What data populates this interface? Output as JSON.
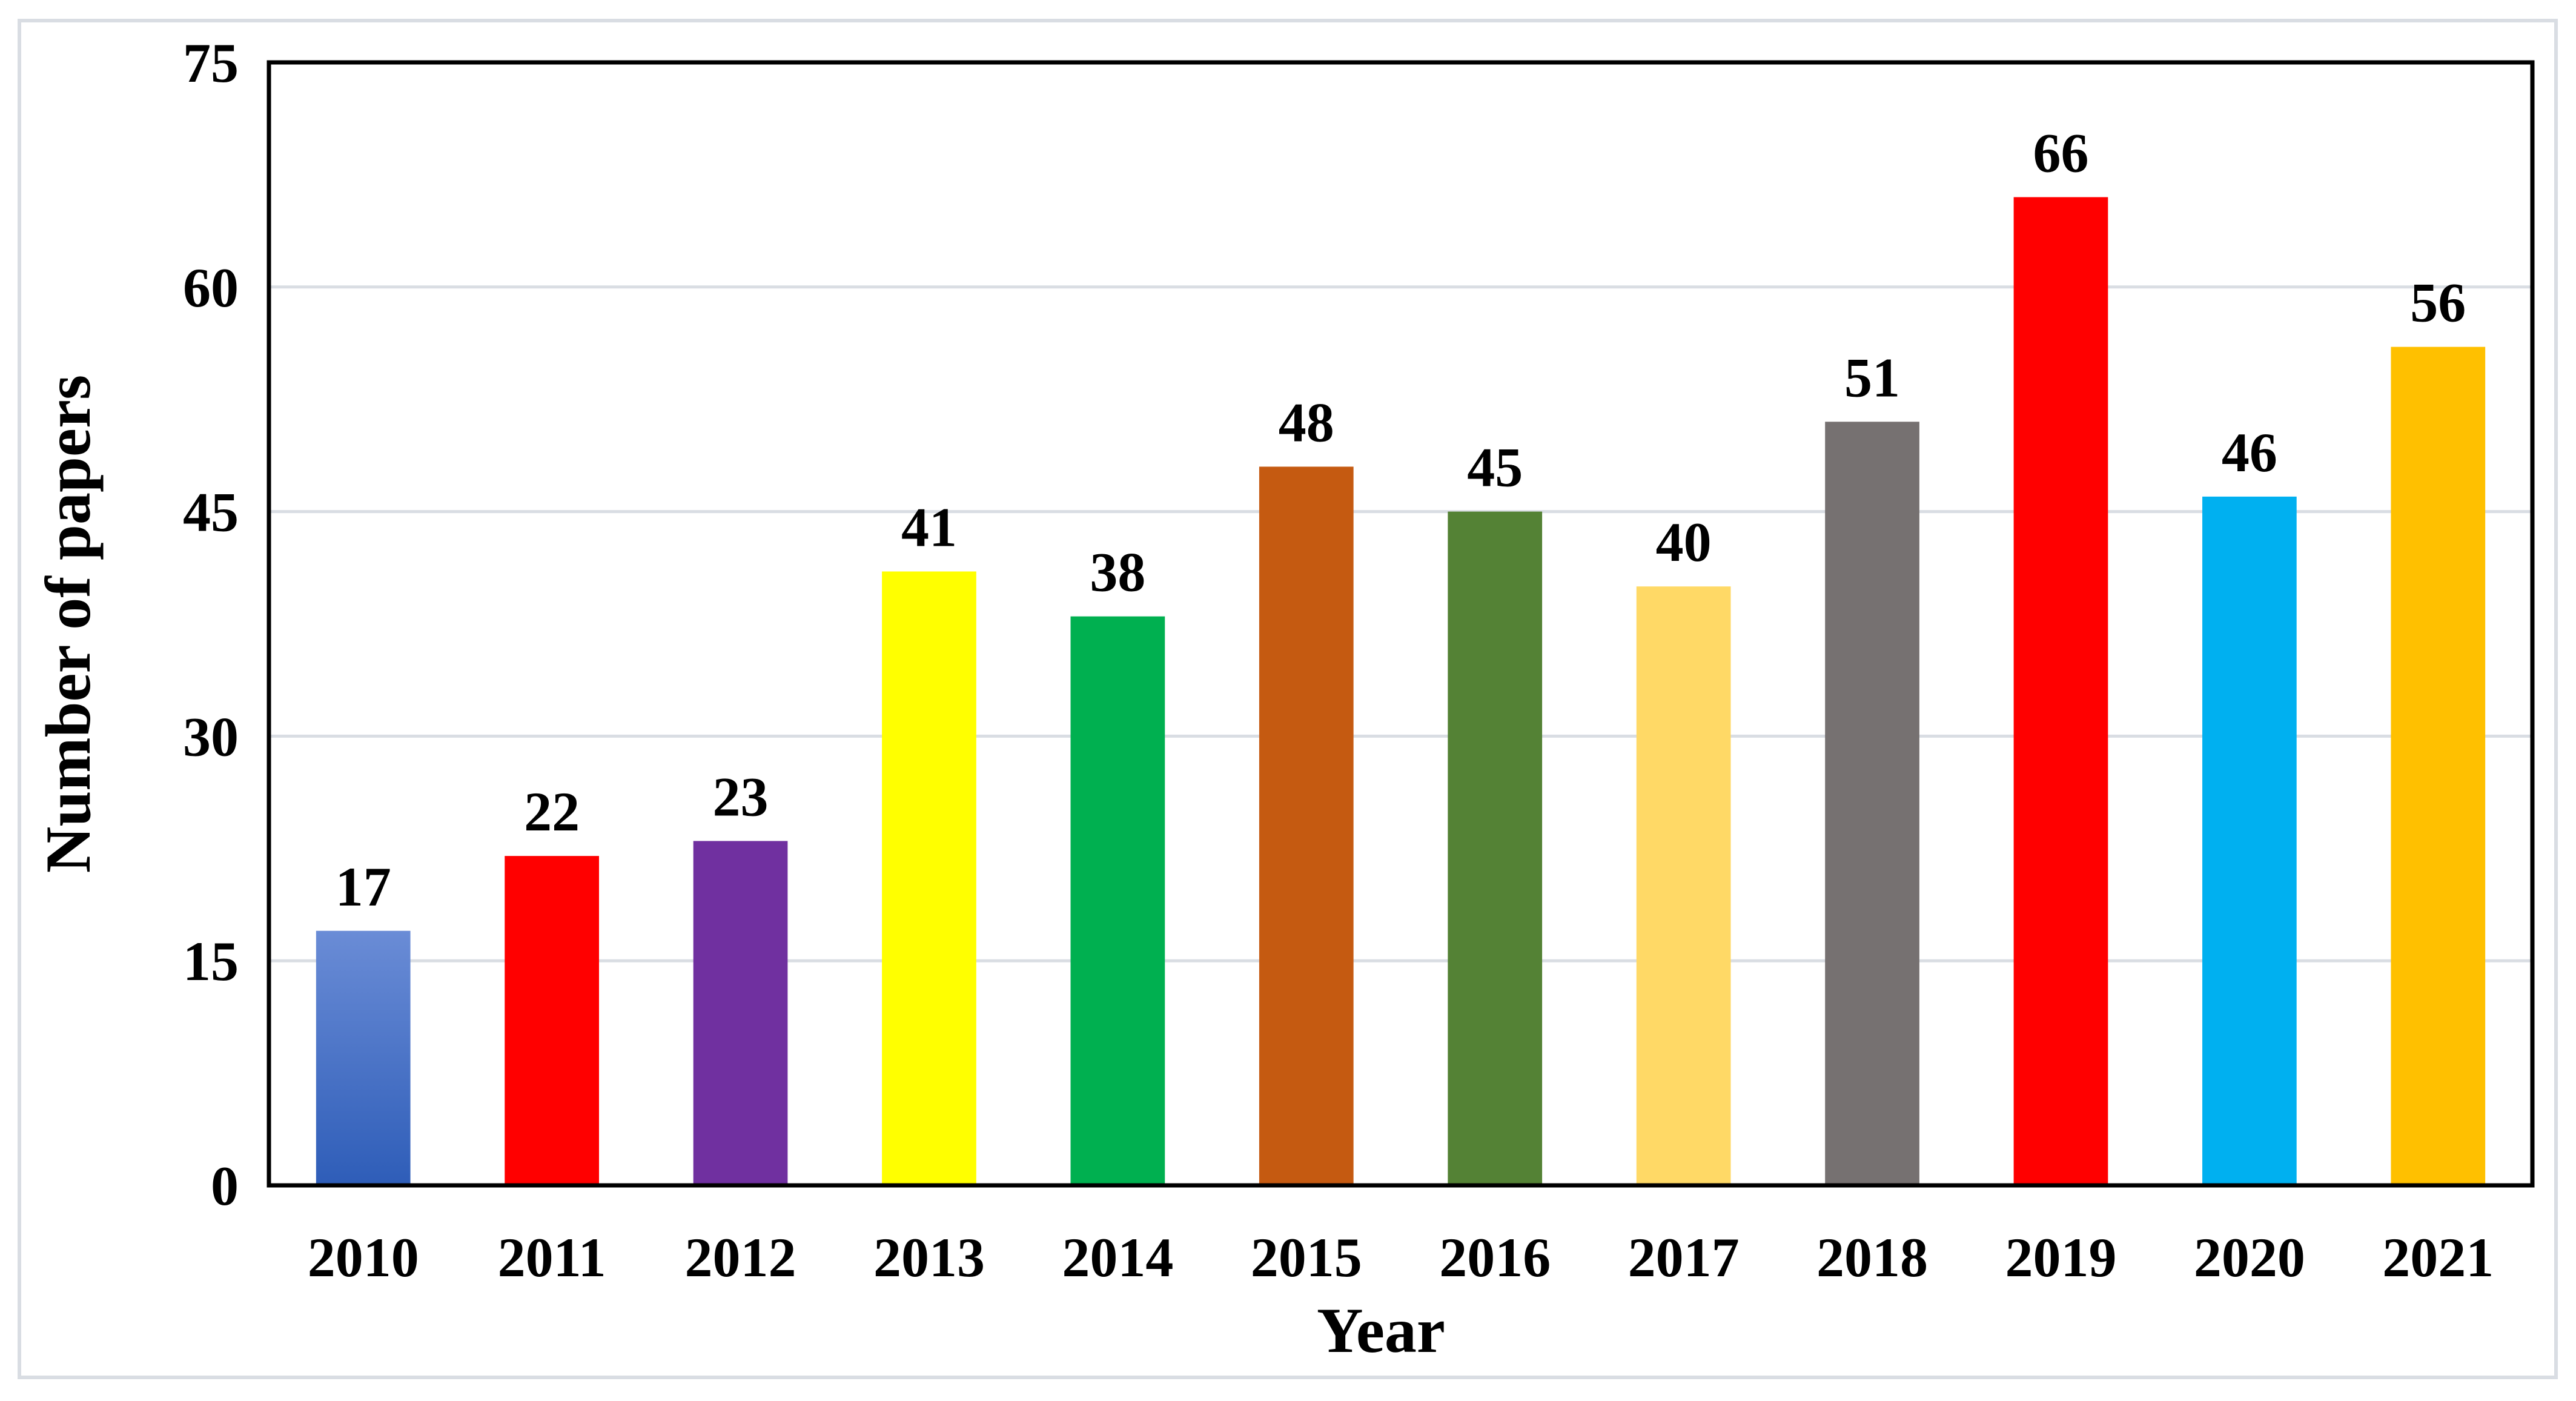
{
  "chart_data": {
    "type": "bar",
    "title": "",
    "xlabel": "Year",
    "ylabel": "Number of papers",
    "categories": [
      "2010",
      "2011",
      "2012",
      "2013",
      "2014",
      "2015",
      "2016",
      "2017",
      "2018",
      "2019",
      "2020",
      "2021"
    ],
    "values": [
      17,
      22,
      23,
      41,
      38,
      48,
      45,
      40,
      51,
      66,
      46,
      56
    ],
    "data_labels": [
      "17",
      "22",
      "23",
      "41",
      "38",
      "48",
      "45",
      "40",
      "51",
      "66",
      "46",
      "56"
    ],
    "ylim": [
      0,
      75
    ],
    "yticks": [
      0,
      15,
      30,
      45,
      60,
      75
    ],
    "ytick_labels": [
      "0",
      "15",
      "30",
      "45",
      "60",
      "75"
    ],
    "grid": true,
    "legend": "none",
    "bar_colors": [
      "#4472C4",
      "#FF0000",
      "#7030A0",
      "#FFFF00",
      "#00B050",
      "#C55A11",
      "#548235",
      "#FFD966",
      "#767171",
      "#FF0000",
      "#00B0F0",
      "#FFC000"
    ],
    "first_bar_gradient": [
      "#6A8CD6",
      "#2E5DB8"
    ]
  }
}
